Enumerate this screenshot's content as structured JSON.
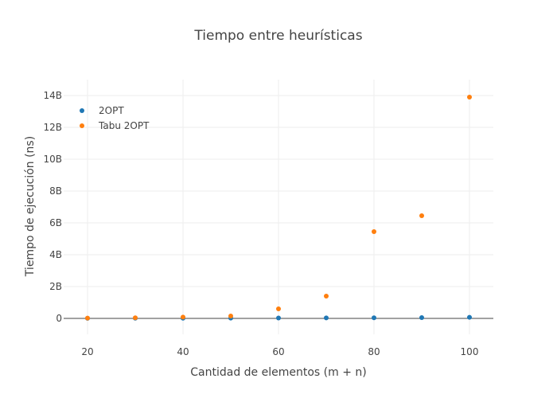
{
  "chart_data": {
    "type": "scatter",
    "title": "Tiempo entre heurísticas",
    "xlabel": "Cantidad de elementos (m + n)",
    "ylabel": "Tiempo de ejecución (ns)",
    "xlim": [
      15,
      105
    ],
    "ylim": [
      -1000000000,
      15000000000
    ],
    "x_ticks": [
      20,
      40,
      60,
      80,
      100
    ],
    "x_tick_labels": [
      "20",
      "40",
      "60",
      "80",
      "100"
    ],
    "y_ticks": [
      0,
      2000000000,
      4000000000,
      6000000000,
      8000000000,
      10000000000,
      12000000000,
      14000000000
    ],
    "y_tick_labels": [
      "0",
      "2B",
      "4B",
      "6B",
      "8B",
      "10B",
      "12B",
      "14B"
    ],
    "grid": true,
    "legend_position": "top-left",
    "series": [
      {
        "name": "2OPT",
        "color": "#1f77b4",
        "x": [
          20,
          30,
          40,
          50,
          60,
          70,
          80,
          90,
          100
        ],
        "y": [
          5000000,
          10000000,
          15000000,
          20000000,
          25000000,
          30000000,
          40000000,
          50000000,
          70000000
        ]
      },
      {
        "name": "Tabu 2OPT",
        "color": "#ff7f0e",
        "x": [
          20,
          30,
          40,
          50,
          60,
          70,
          80,
          90,
          100
        ],
        "y": [
          20000000,
          40000000,
          80000000,
          150000000,
          600000000,
          1400000000,
          5450000000,
          6450000000,
          13900000000
        ]
      }
    ]
  }
}
